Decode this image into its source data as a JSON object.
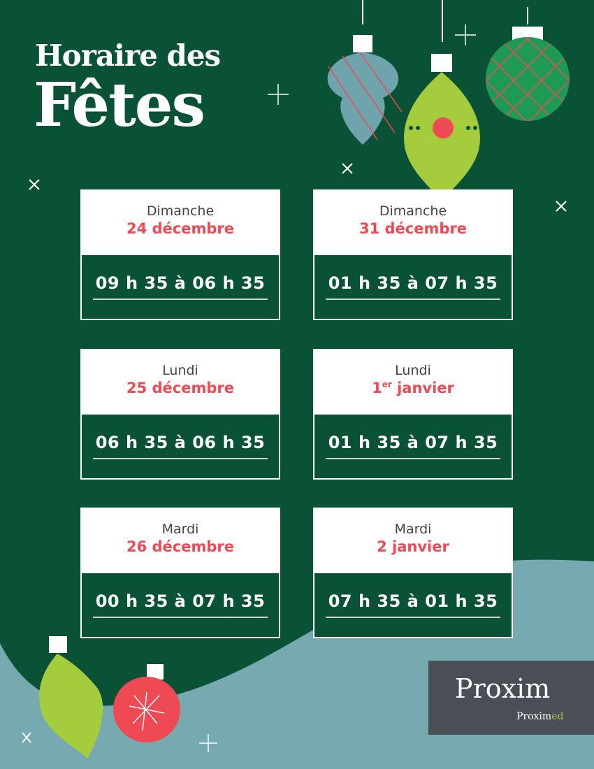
{
  "title": {
    "line1": "Horaire des",
    "line2": "Fêtes"
  },
  "colors": {
    "background": "#0a5236",
    "accent": "#ef4a54",
    "wave": "#76a9b0",
    "lime": "#a4cc3c",
    "logo_bg": "#4a4f57"
  },
  "schedule": [
    {
      "day": "Dimanche",
      "date": "24 décembre",
      "hours": "09 h 35 à 06 h 35"
    },
    {
      "day": "Dimanche",
      "date": "31 décembre",
      "hours": "01 h 35 à 07 h 35"
    },
    {
      "day": "Lundi",
      "date": "25 décembre",
      "hours": "06 h 35 à 06 h 35"
    },
    {
      "day": "Lundi",
      "date_num": "1",
      "date_sup": "er",
      "date_rest": " janvier",
      "hours": "01 h 35 à 07 h 35"
    },
    {
      "day": "Mardi",
      "date": "26 décembre",
      "hours": "00 h 35 à 07 h 35"
    },
    {
      "day": "Mardi",
      "date": "2 janvier",
      "hours": "07 h 35 à 01 h 35"
    }
  ],
  "logo": {
    "main": "Proxim",
    "sub_a": "Proxim",
    "sub_b": "ed"
  }
}
